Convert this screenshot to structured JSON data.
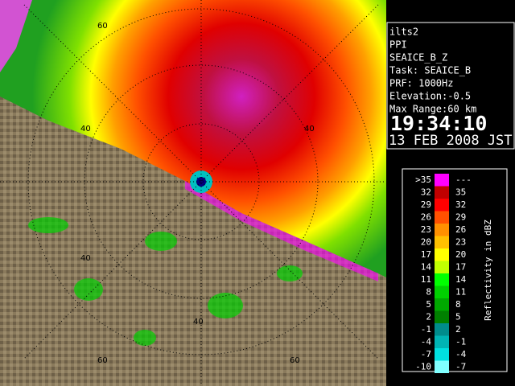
{
  "info": {
    "lines": [
      "ilts2",
      "PPI",
      "SEAICE_B_Z",
      "Task: SEAICE_B",
      "PRF: 1000Hz",
      "Elevation:-0.5",
      "Max Range:60 km"
    ],
    "time": "19:34:10",
    "date": "13 FEB 2008 JST"
  },
  "range_labels": [
    "60",
    "40",
    "40",
    "40",
    "40",
    "60",
    "60"
  ],
  "legend": {
    "title": "Reflectivity in dBZ",
    "rows": [
      {
        "low": ">35",
        "high": "---",
        "color": "#ff00ff"
      },
      {
        "low": "32",
        "high": "35",
        "color": "#c00000"
      },
      {
        "low": "29",
        "high": "32",
        "color": "#ff0000"
      },
      {
        "low": "26",
        "high": "29",
        "color": "#ff5000"
      },
      {
        "low": "23",
        "high": "26",
        "color": "#ff9000"
      },
      {
        "low": "20",
        "high": "23",
        "color": "#ffc000"
      },
      {
        "low": "17",
        "high": "20",
        "color": "#ffff00"
      },
      {
        "low": "14",
        "high": "17",
        "color": "#c0ff00"
      },
      {
        "low": "11",
        "high": "14",
        "color": "#00ff00"
      },
      {
        "low": "8",
        "high": "11",
        "color": "#00d000"
      },
      {
        "low": "5",
        "high": "8",
        "color": "#00a800"
      },
      {
        "low": "2",
        "high": "5",
        "color": "#008000"
      },
      {
        "low": "-1",
        "high": "2",
        "color": "#008c8c"
      },
      {
        "low": "-4",
        "high": "-1",
        "color": "#00b4b4"
      },
      {
        "low": "-7",
        "high": "-4",
        "color": "#00e0e0"
      },
      {
        "low": "-10",
        "high": "-7",
        "color": "#80ffff"
      }
    ]
  }
}
